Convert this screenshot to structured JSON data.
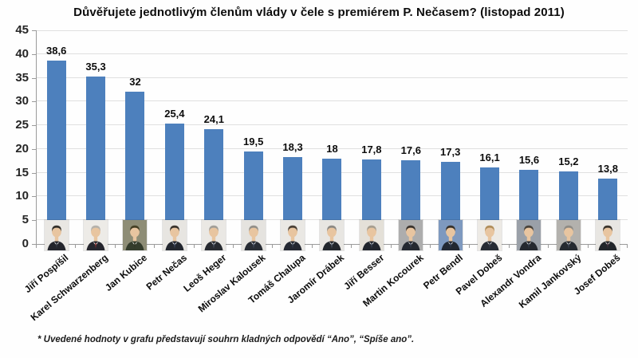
{
  "title": "Důvěřujete jednotlivým členům vlády v čele s premiérem P. Nečasem? (listopad 2011)",
  "footnote": "* Uvedené hodnoty v grafu představují souhrn kladných odpovědí “Ano”, “Spíše ano”.",
  "chart_data": {
    "type": "bar",
    "title": "Důvěřujete jednotlivým členům vlády v čele s premiérem P. Nečasem? (listopad 2011)",
    "categories": [
      "Jiří Pospíšil",
      "Karel Schwarzenberg",
      "Jan Kubice",
      "Petr Nečas",
      "Leoš Heger",
      "Miroslav Kalousek",
      "Tomáš Chalupa",
      "Jaromír Drábek",
      "Jiří Besser",
      "Martin Kocourek",
      "Petr Bendl",
      "Pavel Dobeš",
      "Alexandr Vondra",
      "Kamil Jankovský",
      "Josef Dobeš"
    ],
    "values": [
      38.6,
      35.3,
      32,
      25.4,
      24.1,
      19.5,
      18.3,
      18,
      17.8,
      17.6,
      17.3,
      16.1,
      15.6,
      15.2,
      13.8
    ],
    "value_labels": [
      "38,6",
      "35,3",
      "32",
      "25,4",
      "24,1",
      "19,5",
      "18,3",
      "18",
      "17,8",
      "17,6",
      "17,3",
      "16,1",
      "15,6",
      "15,2",
      "13,8"
    ],
    "xlabel": "",
    "ylabel": "",
    "ylim": [
      0,
      45
    ],
    "ytick_step": 5,
    "yticks": [
      0,
      5,
      10,
      15,
      20,
      25,
      30,
      35,
      40,
      45
    ],
    "grid": true,
    "legend_position": "none",
    "bar_color": "#4d80bd",
    "axis_color": "#9b9b9b",
    "gridline_color": "#e0e0e0",
    "avatar_skin": "#e8c5a0",
    "avatars": [
      {
        "bg": "#e9e7e3",
        "hair": "#33302c",
        "suit": "#23252c",
        "tie": "#3a3f4a"
      },
      {
        "bg": "#edebe7",
        "hair": "#b5b2ac",
        "suit": "#26262e",
        "tie": "#8e2f2f"
      },
      {
        "bg": "#8e8d76",
        "hair": "#453f24",
        "suit": "#343c2c",
        "tie": "#2f3322"
      },
      {
        "bg": "#e7e5e1",
        "hair": "#3a342e",
        "suit": "#22262e",
        "tie": "#44506a"
      },
      {
        "bg": "#eae8e4",
        "hair": "#a29f99",
        "suit": "#272a30",
        "tie": "#555d6e"
      },
      {
        "bg": "#e5e3df",
        "hair": "#93908a",
        "suit": "#282c34",
        "tie": "#4a5468"
      },
      {
        "bg": "#eae8e4",
        "hair": "#4c4238",
        "suit": "#242832",
        "tie": "#3c465a"
      },
      {
        "bg": "#e8e6e2",
        "hair": "#8d8a85",
        "suit": "#22262c",
        "tie": "#5a6476"
      },
      {
        "bg": "#e4e0d8",
        "hair": "#a89f90",
        "suit": "#21252d",
        "tie": "#404a5e"
      },
      {
        "bg": "#adadad",
        "hair": "#3b342e",
        "suit": "#252931",
        "tie": "#39435a"
      },
      {
        "bg": "#7e99bf",
        "hair": "#38322c",
        "suit": "#222832",
        "tie": "#31405c"
      },
      {
        "bg": "#edeae5",
        "hair": "#b08d5a",
        "suit": "#282c34",
        "tie": "#3e4453"
      },
      {
        "bg": "#9aa0a8",
        "hair": "#4a443c",
        "suit": "#252930",
        "tie": "#3a4456"
      },
      {
        "bg": "#b3b1ad",
        "hair": "#8e8b85",
        "suit": "#262a30",
        "tie": "#4a5262"
      },
      {
        "bg": "#e8e6e2",
        "hair": "#3c362f",
        "suit": "#22262a",
        "tie": "#4a3340"
      }
    ]
  }
}
